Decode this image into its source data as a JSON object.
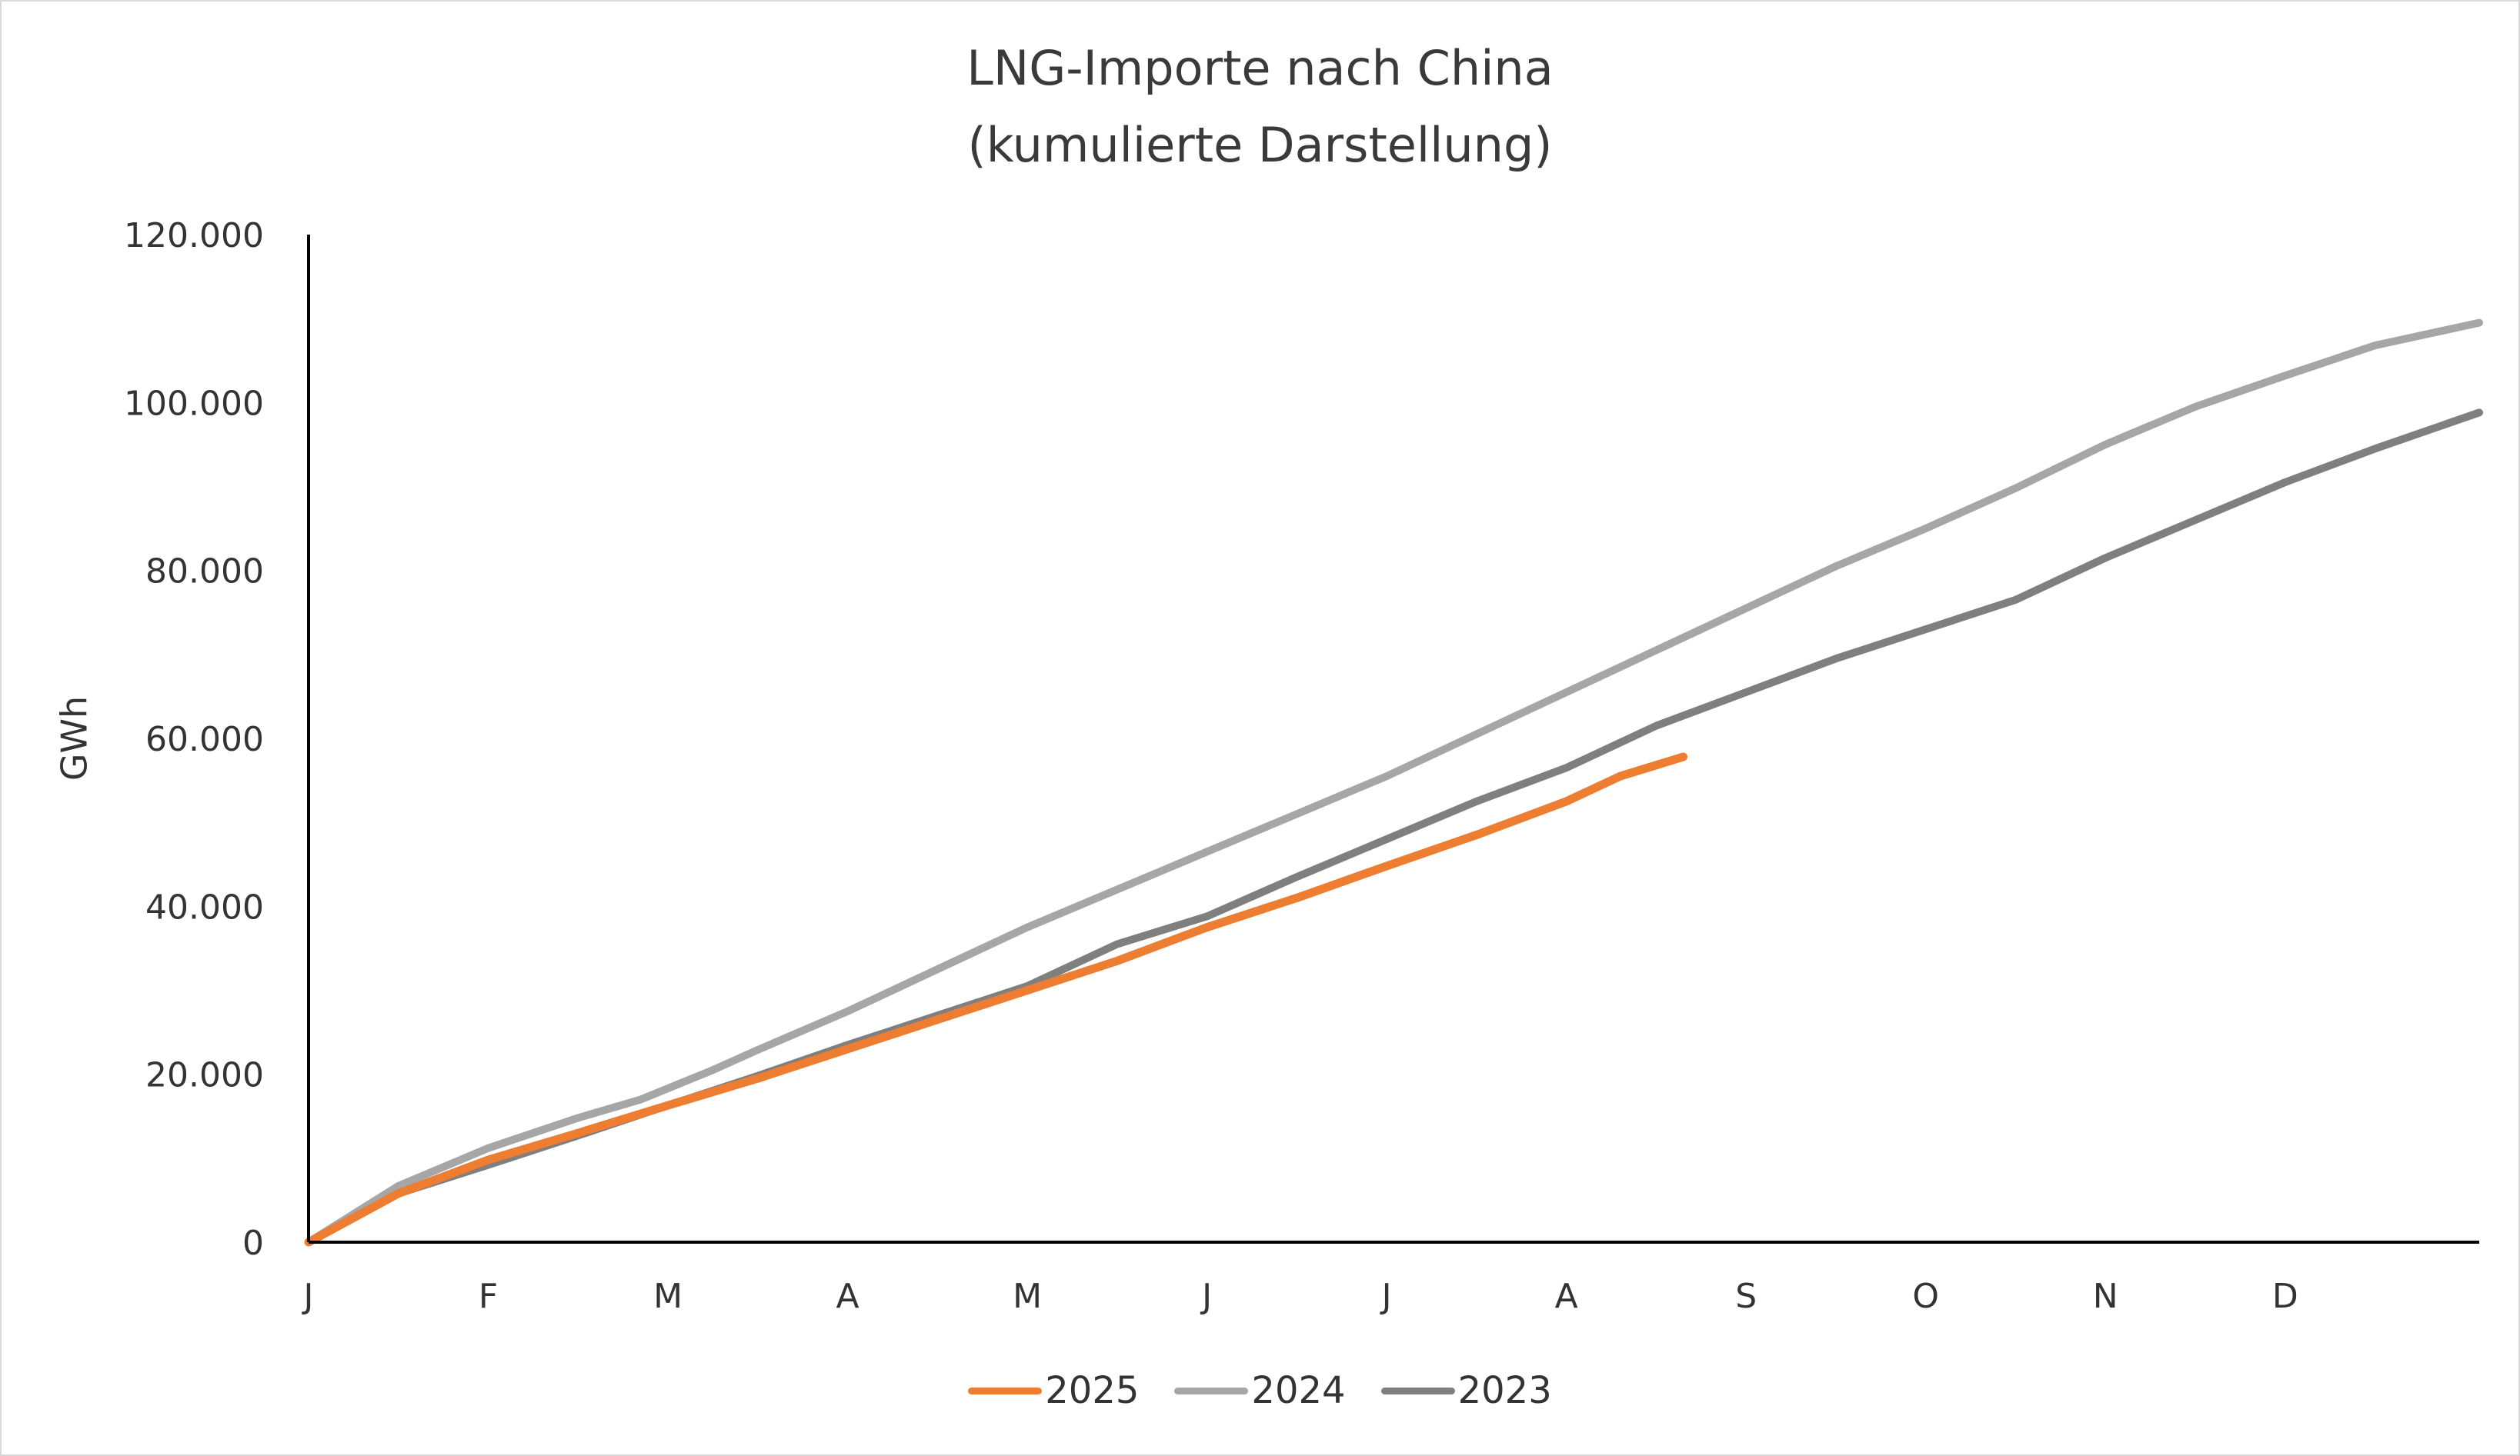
{
  "chart_data": {
    "type": "line",
    "title": "LNG-Importe nach China",
    "subtitle": "(kumulierte Darstellung)",
    "ylabel": "GWh",
    "xlabel": "",
    "ylim": [
      0,
      120000
    ],
    "yticks": [
      0,
      20000,
      40000,
      60000,
      80000,
      100000,
      120000
    ],
    "ytick_labels": [
      "0",
      "20.000",
      "40.000",
      "60.000",
      "80.000",
      "100.000",
      "120.000"
    ],
    "xticks": [
      0,
      1,
      2,
      3,
      4,
      5,
      6,
      7,
      8,
      9,
      10,
      11
    ],
    "xtick_labels": [
      "J",
      "F",
      "M",
      "A",
      "M",
      "J",
      "J",
      "A",
      "S",
      "O",
      "N",
      "D"
    ],
    "xlim": [
      0,
      12.08
    ],
    "grid": false,
    "legend": "bottom",
    "series": [
      {
        "name": "2025",
        "color": "#ed7d31",
        "x": [
          0,
          0.5,
          1,
          1.5,
          2,
          2.5,
          3,
          3.5,
          4,
          4.5,
          5,
          5.5,
          6,
          6.5,
          7,
          7.3,
          7.65
        ],
        "y": [
          0,
          5800,
          9800,
          13000,
          16300,
          19500,
          23000,
          26500,
          30000,
          33500,
          37500,
          41000,
          44800,
          48500,
          52500,
          55500,
          57800
        ]
      },
      {
        "name": "2024",
        "color": "#a6a6a6",
        "x": [
          0,
          0.5,
          1,
          1.5,
          1.85,
          2.25,
          2.5,
          3,
          3.5,
          4,
          4.5,
          5,
          5.5,
          6,
          6.5,
          7,
          7.5,
          8,
          8.5,
          9,
          9.5,
          10,
          10.5,
          11,
          11.5,
          12.08
        ],
        "y": [
          0,
          6700,
          11200,
          14800,
          17000,
          20500,
          22900,
          27500,
          32500,
          37500,
          42000,
          46500,
          51000,
          55500,
          60500,
          65500,
          70500,
          75500,
          80500,
          85000,
          89800,
          95000,
          99500,
          103200,
          106800,
          109500
        ]
      },
      {
        "name": "2023",
        "color": "#7f7f7f",
        "x": [
          0,
          0.5,
          1,
          1.5,
          2,
          2.5,
          3,
          3.5,
          4,
          4.5,
          5,
          5.5,
          6,
          6.5,
          7,
          7.5,
          8,
          8.5,
          9,
          9.5,
          10,
          10.5,
          11,
          11.5,
          12.08
        ],
        "y": [
          0,
          5800,
          9200,
          12700,
          16300,
          19800,
          23500,
          27000,
          30500,
          35500,
          38800,
          43500,
          48000,
          52500,
          56500,
          61500,
          65500,
          69500,
          73000,
          76500,
          81500,
          86000,
          90500,
          94500,
          98800
        ]
      }
    ]
  }
}
